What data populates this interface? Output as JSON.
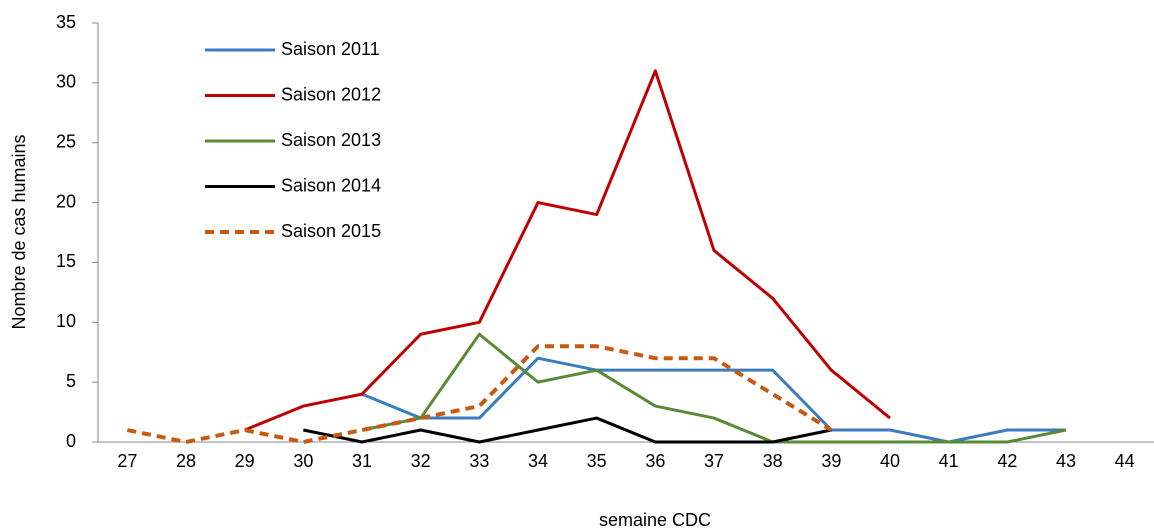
{
  "chart_data": {
    "type": "line",
    "x_label": "semaine CDC",
    "y_label": "Nombre de cas humains",
    "categories": [
      "27",
      "28",
      "29",
      "30",
      "31",
      "32",
      "33",
      "34",
      "35",
      "36",
      "37",
      "38",
      "39",
      "40",
      "41",
      "42",
      "43",
      "44"
    ],
    "series": [
      {
        "name": "Saison 2011",
        "color": "#3b7cc0",
        "values": [
          null,
          null,
          null,
          null,
          4,
          2,
          2,
          7,
          6,
          6,
          6,
          6,
          1,
          1,
          0,
          1,
          1,
          null
        ]
      },
      {
        "name": "Saison 2012",
        "color": "#c00000",
        "values": [
          null,
          null,
          1,
          3,
          4,
          9,
          10,
          20,
          19,
          31,
          16,
          12,
          6,
          2,
          null,
          null,
          null,
          null
        ]
      },
      {
        "name": "Saison 2013",
        "color": "#5a8a36",
        "values": [
          null,
          null,
          null,
          null,
          1,
          2,
          9,
          5,
          6,
          3,
          2,
          0,
          0,
          0,
          0,
          0,
          1,
          null
        ]
      },
      {
        "name": "Saison 2014",
        "color": "#000000",
        "values": [
          null,
          null,
          null,
          1,
          0,
          1,
          0,
          1,
          2,
          0,
          0,
          0,
          1,
          null,
          null,
          null,
          null,
          null
        ]
      },
      {
        "name": "Saison 2015",
        "color": "#c55a11",
        "dashed": true,
        "values": [
          1,
          0,
          1,
          0,
          1,
          2,
          3,
          8,
          8,
          7,
          7,
          4,
          1,
          null,
          null,
          null,
          null,
          null
        ]
      }
    ],
    "ylim": [
      0,
      35
    ],
    "yticks": [
      0,
      5,
      10,
      15,
      20,
      25,
      30,
      35
    ],
    "grid": false,
    "legend": "upper left"
  }
}
